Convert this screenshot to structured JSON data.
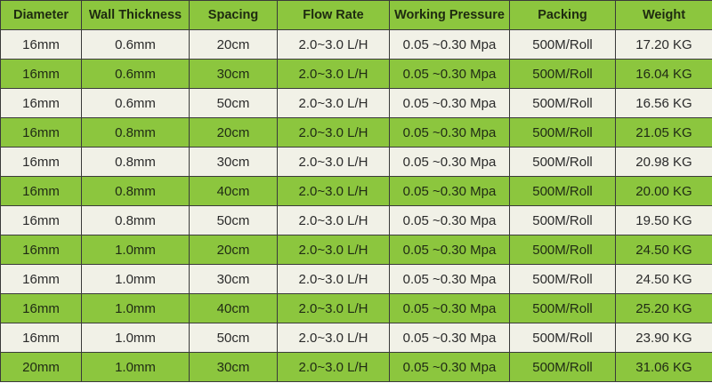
{
  "colors": {
    "green": "#8cc63e",
    "light": "#f1f1e7",
    "border": "#3a3a3a"
  },
  "table": {
    "headers": [
      "Diameter",
      "Wall Thickness",
      "Spacing",
      "Flow Rate",
      "Working Pressure",
      "Packing",
      "Weight"
    ],
    "rows": [
      [
        "16mm",
        "0.6mm",
        "20cm",
        "2.0~3.0 L/H",
        "0.05 ~0.30 Mpa",
        "500M/Roll",
        "17.20 KG"
      ],
      [
        "16mm",
        "0.6mm",
        "30cm",
        "2.0~3.0 L/H",
        "0.05 ~0.30 Mpa",
        "500M/Roll",
        "16.04 KG"
      ],
      [
        "16mm",
        "0.6mm",
        "50cm",
        "2.0~3.0 L/H",
        "0.05 ~0.30 Mpa",
        "500M/Roll",
        "16.56 KG"
      ],
      [
        "16mm",
        "0.8mm",
        "20cm",
        "2.0~3.0 L/H",
        "0.05 ~0.30 Mpa",
        "500M/Roll",
        "21.05 KG"
      ],
      [
        "16mm",
        "0.8mm",
        "30cm",
        "2.0~3.0 L/H",
        "0.05 ~0.30 Mpa",
        "500M/Roll",
        "20.98 KG"
      ],
      [
        "16mm",
        "0.8mm",
        "40cm",
        "2.0~3.0 L/H",
        "0.05 ~0.30 Mpa",
        "500M/Roll",
        "20.00 KG"
      ],
      [
        "16mm",
        "0.8mm",
        "50cm",
        "2.0~3.0 L/H",
        "0.05 ~0.30 Mpa",
        "500M/Roll",
        "19.50 KG"
      ],
      [
        "16mm",
        "1.0mm",
        "20cm",
        "2.0~3.0 L/H",
        "0.05 ~0.30 Mpa",
        "500M/Roll",
        "24.50 KG"
      ],
      [
        "16mm",
        "1.0mm",
        "30cm",
        "2.0~3.0 L/H",
        "0.05 ~0.30 Mpa",
        "500M/Roll",
        "24.50 KG"
      ],
      [
        "16mm",
        "1.0mm",
        "40cm",
        "2.0~3.0 L/H",
        "0.05 ~0.30 Mpa",
        "500M/Roll",
        "25.20 KG"
      ],
      [
        "16mm",
        "1.0mm",
        "50cm",
        "2.0~3.0 L/H",
        "0.05 ~0.30 Mpa",
        "500M/Roll",
        "23.90 KG"
      ],
      [
        "20mm",
        "1.0mm",
        "30cm",
        "2.0~3.0 L/H",
        "0.05 ~0.30 Mpa",
        "500M/Roll",
        "31.06 KG"
      ]
    ]
  }
}
